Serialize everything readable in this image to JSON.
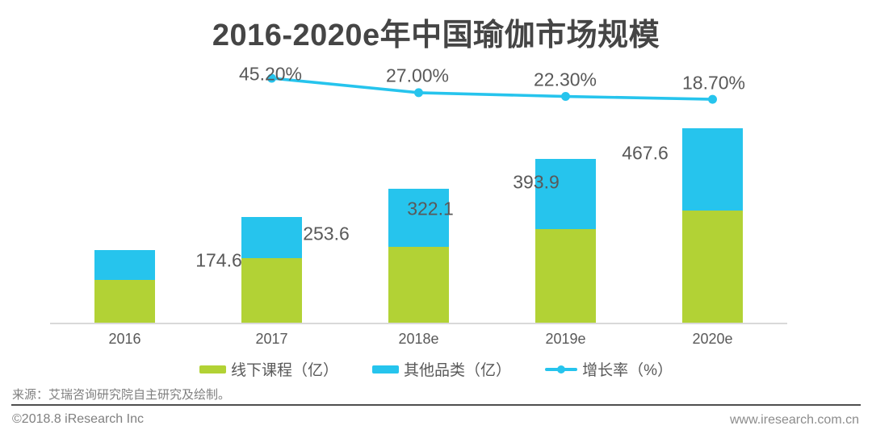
{
  "title": "2016-2020e年中国瑜伽市场规模",
  "source_note": "来源：艾瑞咨询研究院自主研究及绘制。",
  "footer": {
    "copyright": "©2018.8 iResearch Inc",
    "website": "www.iresearch.com.cn"
  },
  "colors": {
    "bar_green": "#b2d235",
    "bar_blue": "#26c4ed",
    "line_blue": "#26c4ed",
    "title_text": "#454545",
    "label_text": "#595959",
    "axis_line": "#d9d9d9",
    "footer_text": "#808080"
  },
  "legend": [
    {
      "label": "线下课程（亿）",
      "icon": "green-bar-swatch"
    },
    {
      "label": "其他品类（亿）",
      "icon": "blue-bar-swatch"
    },
    {
      "label": "增长率（%）",
      "icon": "line-marker-swatch"
    }
  ],
  "chart_data": {
    "type": "bar",
    "subtype": "stacked-bars-with-line",
    "title": "2016-2020e年中国瑜伽市场规模",
    "categories": [
      "2016",
      "2017",
      "2018e",
      "2019e",
      "2020e"
    ],
    "series": [
      {
        "name": "线下课程（亿）",
        "color": "#b2d235",
        "estimated_from_pixels": true,
        "values": [
          102.3,
          154.5,
          181.7,
          224.8,
          269.7
        ]
      },
      {
        "name": "其他品类（亿）",
        "color": "#26c4ed",
        "estimated_from_pixels": true,
        "values": [
          72.3,
          99.1,
          140.4,
          169.1,
          197.9
        ]
      }
    ],
    "totals": [
      174.6,
      253.6,
      322.1,
      393.9,
      467.6
    ],
    "total_labels": [
      "174.6",
      "253.6",
      "322.1",
      "393.9",
      "467.6"
    ],
    "line_series": {
      "name": "增长率（%）",
      "color": "#26c4ed",
      "values": [
        null,
        45.2,
        27.0,
        22.3,
        18.7
      ],
      "labels": [
        "45.20%",
        "27.00%",
        "22.30%",
        "18.70%"
      ]
    },
    "ylabel": "",
    "xlabel": "",
    "grid": false,
    "legend_position": "bottom"
  }
}
